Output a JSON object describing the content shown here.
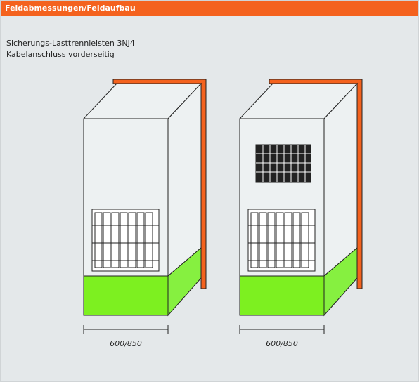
{
  "header": {
    "title": "Feldabmessungen/Feldaufbau"
  },
  "description": [
    "Sicherungs-Lasttrennleisten 3NJ4",
    "Kabelanschluss vorderseitig"
  ],
  "cabinets": [
    {
      "dimension": "600/850"
    },
    {
      "dimension": "600/850"
    }
  ]
}
